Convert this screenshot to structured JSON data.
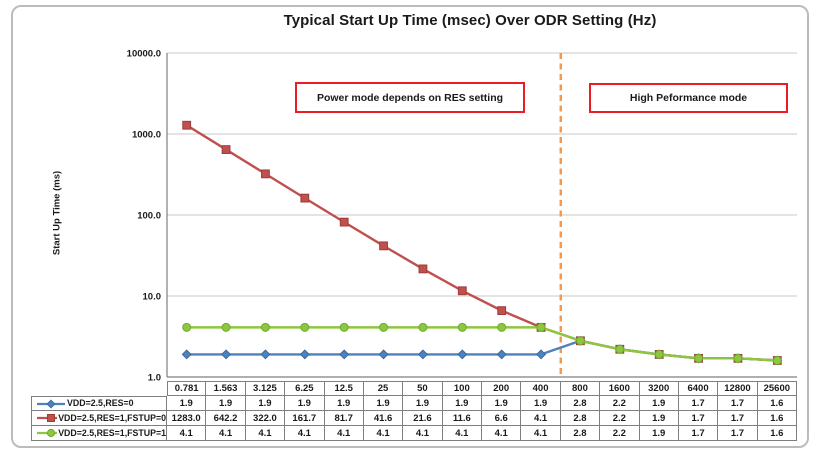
{
  "annotations": {
    "left_box": "Power mode depends on RES setting",
    "right_box": "High Peformance mode"
  },
  "colors": {
    "divider": "#F79646",
    "gridline": "#C9C9C9",
    "axis": "#7f7f7f",
    "annotation_border": "#ec1c24",
    "frame_border": "#bcbcbc",
    "text": "#1a1a1a"
  },
  "chart_data": {
    "type": "line",
    "title": "Typical Start Up Time (msec) Over ODR Setting (Hz)",
    "xlabel": "",
    "ylabel": "Start Up Time (ms)",
    "y_scale": "log",
    "ylim": [
      1,
      10000
    ],
    "y_ticks": [
      "10000.0",
      "1000.0",
      "100.0",
      "10.0",
      "1.0"
    ],
    "y_tick_values": [
      10000,
      1000,
      100,
      10,
      1
    ],
    "grid": true,
    "legend_position": "table-left",
    "categories": [
      "0.781",
      "1.563",
      "3.125",
      "6.25",
      "12.5",
      "25",
      "50",
      "100",
      "200",
      "400",
      "800",
      "1600",
      "3200",
      "6400",
      "12800",
      "25600"
    ],
    "series": [
      {
        "name": "VDD=2.5,RES=0",
        "marker": "diamond",
        "color": "#4F81BD",
        "marker_edge": "#3c69a0",
        "values": [
          1.9,
          1.9,
          1.9,
          1.9,
          1.9,
          1.9,
          1.9,
          1.9,
          1.9,
          1.9,
          2.8,
          2.2,
          1.9,
          1.7,
          1.7,
          1.6
        ]
      },
      {
        "name": "VDD=2.5,RES=1,FSTUP=0",
        "marker": "square",
        "color": "#C0504D",
        "marker_edge": "#9e3d3a",
        "values": [
          1283.0,
          642.2,
          322.0,
          161.7,
          81.7,
          41.6,
          21.6,
          11.6,
          6.6,
          4.1,
          2.8,
          2.2,
          1.9,
          1.7,
          1.7,
          1.6
        ]
      },
      {
        "name": "VDD=2.5,RES=1,FSTUP=1",
        "marker": "circle",
        "color": "#8DC63F",
        "marker_edge": "#6faa2e",
        "values": [
          4.1,
          4.1,
          4.1,
          4.1,
          4.1,
          4.1,
          4.1,
          4.1,
          4.1,
          4.1,
          2.8,
          2.2,
          1.9,
          1.7,
          1.7,
          1.6
        ]
      }
    ],
    "divider": {
      "before_category": "800",
      "color": "#F79646",
      "style": "dashed"
    }
  }
}
